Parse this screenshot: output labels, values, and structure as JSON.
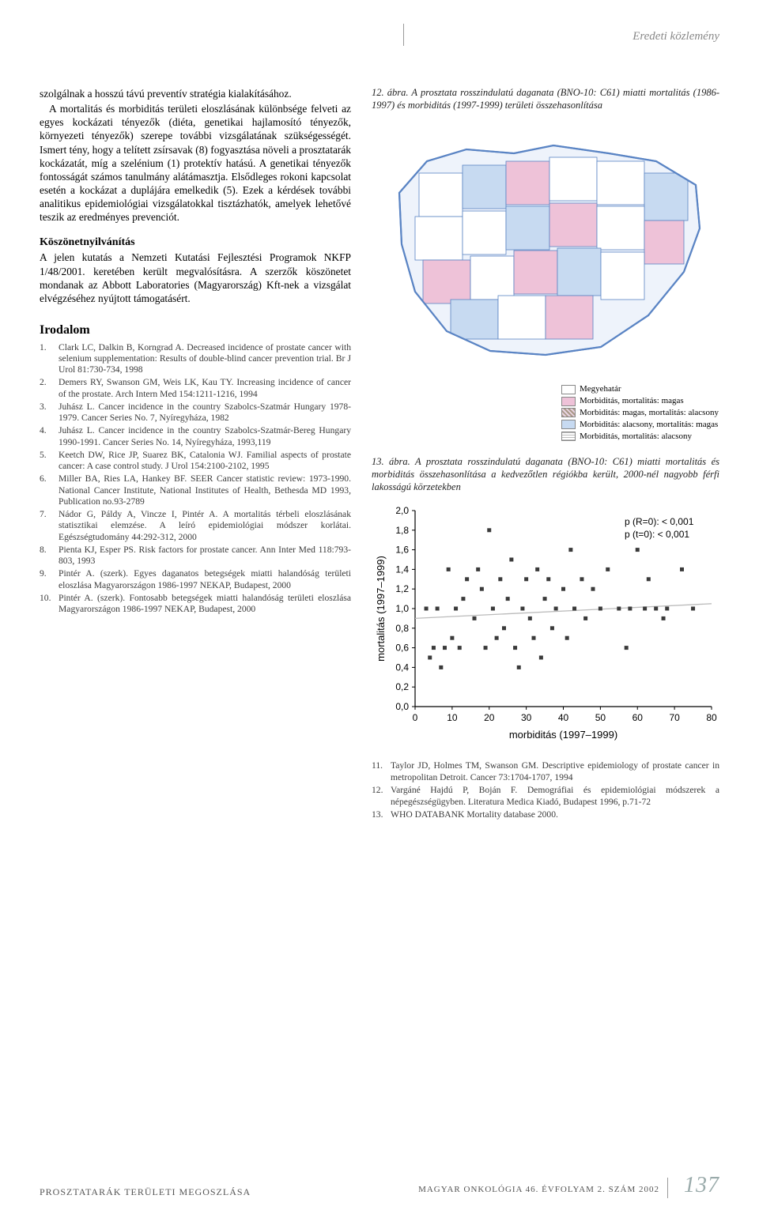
{
  "header": {
    "section": "Eredeti közlemény"
  },
  "left": {
    "para1": "szolgálnak a hosszú távú preventív stratégia kialakításához.",
    "para2": "A mortalitás és morbiditás területi eloszlásának különbsége felveti az egyes kockázati tényezők (diéta, genetikai hajlamosító tényezők, környezeti tényezők) szerepe további vizsgálatának szükségességét. Ismert tény, hogy a telített zsírsavak (8) fogyasztása növeli a prosztatarák kockázatát, míg a szelénium (1) protektív hatású. A genetikai tényezők fontosságát számos tanulmány alátámasztja. Elsődleges rokoni kapcsolat esetén a kockázat a duplájára emelkedik (5). Ezek a kérdések további analitikus epidemiológiai vizsgálatokkal tisztázhatók, amelyek lehetővé teszik az eredményes prevenciót.",
    "ack_title": "Köszönetnyilvánítás",
    "ack_body": "A jelen kutatás a Nemzeti Kutatási Fejlesztési Programok NKFP 1/48/2001. keretében került megvalósításra. A szerzők köszönetet mondanak az Abbott Laboratories (Magyarország) Kft-nek a vizsgálat elvégzéséhez nyújtott támogatásért.",
    "irodalom_title": "Irodalom",
    "refs": [
      "Clark LC, Dalkin B, Korngrad A. Decreased incidence of prostate cancer with selenium supplementation: Results of double-blind cancer prevention trial. Br J Urol 81:730-734, 1998",
      "Demers RY, Swanson GM, Weis LK, Kau TY. Increasing incidence of cancer of the prostate. Arch Intern Med 154:1211-1216, 1994",
      "Juhász L. Cancer incidence in the country Szabolcs-Szatmár Hungary 1978-1979. Cancer Series No. 7, Nyíregyháza, 1982",
      "Juhász L. Cancer incidence in the country Szabolcs-Szatmár-Bereg Hungary 1990-1991. Cancer Series No. 14, Nyíregyháza, 1993,119",
      "Keetch DW, Rice JP, Suarez BK, Catalonia WJ. Familial aspects of prostate cancer: A case control study. J Urol 154:2100-2102, 1995",
      "Miller BA, Ries LA, Hankey BF. SEER Cancer statistic review: 1973-1990. National Cancer Institute, National Institutes of Health, Bethesda MD 1993, Publication no.93-2789",
      "Nádor G, Páldy A, Vincze I, Pintér A. A mortalitás térbeli eloszlásának statisztikai elemzése. A leíró epidemiológiai módszer korlátai. Egészségtudomány 44:292-312, 2000",
      "Pienta KJ, Esper PS. Risk factors for prostate cancer. Ann Inter Med 118:793-803, 1993",
      "Pintér A. (szerk). Egyes daganatos betegségek miatti halandóság területi eloszlása Magyarországon 1986-1997 NEKAP, Budapest, 2000",
      "Pintér A. (szerk). Fontosabb betegségek miatti halandóság területi eloszlása Magyarországon 1986-1997 NEKAP, Budapest, 2000"
    ]
  },
  "right": {
    "fig12_caption": "12. ábra. A prosztata rosszindulatú daganata (BNO-10: C61) miatti mortalitás (1986-1997) és morbiditás (1997-1999) területi összehasonlítása",
    "map": {
      "outline_color": "#5a84c4",
      "bg_color": "#eef3fb",
      "fill_blank": "#ffffff",
      "fill_pink": "#eec2d8",
      "fill_blue": "#c7daf1",
      "fill_hatch": "#e8d4e2",
      "legend_border": "Megyehatár",
      "legend_items": [
        {
          "sw": "pink",
          "text": "Morbiditás, mortalitás: magas"
        },
        {
          "sw": "hatch",
          "text": "Morbiditás: magas, mortalitás: alacsony"
        },
        {
          "sw": "blue",
          "text": "Morbiditás: alacsony, mortalitás: magas"
        },
        {
          "sw": "lines",
          "text": "Morbiditás, mortalitás: alacsony"
        }
      ]
    },
    "fig13_caption": "13. ábra. A prosztata rosszindulatú daganata (BNO-10: C61) miatti mortalitás és morbiditás összehasonlítása a kedvezőtlen régiókba került, 2000-nél nagyobb férfi lakosságú körzetekben",
    "scatter": {
      "xlabel": "morbiditás (1997–1999)",
      "ylabel": "mortalitás (1997–1999)",
      "xlim": [
        0,
        80
      ],
      "xtick_step": 10,
      "ylim": [
        0.0,
        2.0
      ],
      "ytick_step": 0.2,
      "ytick_labels": [
        "0,0",
        "0,2",
        "0,4",
        "0,6",
        "0,8",
        "1,0",
        "1,2",
        "1,4",
        "1,6",
        "1,8",
        "2,0"
      ],
      "marker_color": "#3a3a3a",
      "marker_size": 5,
      "regression": {
        "y0": 0.9,
        "y80": 1.05,
        "color": "#bbbbbb",
        "width": 1.3
      },
      "notes": [
        "p (R=0):  < 0,001",
        "p (t=0): < 0,001"
      ],
      "points": [
        [
          3,
          1.0
        ],
        [
          4,
          0.5
        ],
        [
          5,
          0.6
        ],
        [
          6,
          1.0
        ],
        [
          7,
          0.4
        ],
        [
          8,
          0.6
        ],
        [
          9,
          1.4
        ],
        [
          10,
          0.7
        ],
        [
          11,
          1.0
        ],
        [
          12,
          0.6
        ],
        [
          13,
          1.1
        ],
        [
          14,
          1.3
        ],
        [
          16,
          0.9
        ],
        [
          17,
          1.4
        ],
        [
          18,
          1.2
        ],
        [
          19,
          0.6
        ],
        [
          20,
          1.8
        ],
        [
          21,
          1.0
        ],
        [
          22,
          0.7
        ],
        [
          23,
          1.3
        ],
        [
          24,
          0.8
        ],
        [
          25,
          1.1
        ],
        [
          26,
          1.5
        ],
        [
          27,
          0.6
        ],
        [
          28,
          0.4
        ],
        [
          29,
          1.0
        ],
        [
          30,
          1.3
        ],
        [
          31,
          0.9
        ],
        [
          32,
          0.7
        ],
        [
          33,
          1.4
        ],
        [
          34,
          0.5
        ],
        [
          35,
          1.1
        ],
        [
          36,
          1.3
        ],
        [
          37,
          0.8
        ],
        [
          38,
          1.0
        ],
        [
          40,
          1.2
        ],
        [
          41,
          0.7
        ],
        [
          42,
          1.6
        ],
        [
          43,
          1.0
        ],
        [
          45,
          1.3
        ],
        [
          46,
          0.9
        ],
        [
          48,
          1.2
        ],
        [
          50,
          1.0
        ],
        [
          52,
          1.4
        ],
        [
          55,
          1.0
        ],
        [
          57,
          0.6
        ],
        [
          58,
          1.0
        ],
        [
          60,
          1.6
        ],
        [
          62,
          1.0
        ],
        [
          63,
          1.3
        ],
        [
          65,
          1.0
        ],
        [
          67,
          0.9
        ],
        [
          68,
          1.0
        ],
        [
          72,
          1.4
        ],
        [
          75,
          1.0
        ]
      ]
    },
    "refs": [
      {
        "n": "11.",
        "t": "Taylor JD, Holmes TM, Swanson GM. Descriptive epidemiology of prostate cancer in metropolitan Detroit. Cancer 73:1704-1707, 1994"
      },
      {
        "n": "12.",
        "t": "Vargáné Hajdú P, Boján F. Demográfiai és epidemiológiai módszerek a népegészségügyben. Literatura Medica Kiadó, Budapest 1996, p.71-72"
      },
      {
        "n": "13.",
        "t": "WHO DATABANK Mortality database 2000."
      }
    ]
  },
  "footer": {
    "left": "PROSZTATARÁK TERÜLETI MEGOSZLÁSA",
    "center": "MAGYAR ONKOLÓGIA  46. ÉVFOLYAM  2. SZÁM  2002",
    "page": "137"
  }
}
